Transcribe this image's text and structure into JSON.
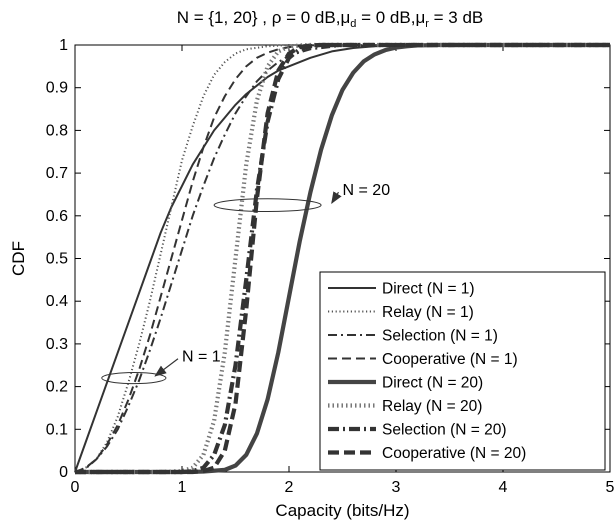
{
  "chart_data": {
    "type": "line",
    "title": {
      "parts": [
        {
          "text": "N = {1, 20} , ρ = 0 dB,μ"
        },
        {
          "text": "d",
          "sub": true
        },
        {
          "text": " = 0 dB,μ"
        },
        {
          "text": "r",
          "sub": true
        },
        {
          "text": " = 3 dB"
        }
      ]
    },
    "xlabel": "Capacity (bits/Hz)",
    "ylabel": "CDF",
    "xlim": [
      0,
      5
    ],
    "ylim": [
      0,
      1
    ],
    "xticks": [
      "0",
      "1",
      "2",
      "3",
      "4",
      "5"
    ],
    "yticks": [
      "0",
      "0.1",
      "0.2",
      "0.3",
      "0.4",
      "0.5",
      "0.6",
      "0.7",
      "0.8",
      "0.9",
      "1"
    ],
    "grid": false,
    "legend_position": "bottom-right",
    "series": [
      {
        "name": "Direct (N = 1)",
        "style": "solid",
        "width": "thin",
        "color": "#333333",
        "x": [
          0,
          0.1,
          0.2,
          0.3,
          0.4,
          0.5,
          0.6,
          0.7,
          0.8,
          0.9,
          1.0,
          1.1,
          1.2,
          1.3,
          1.4,
          1.5,
          1.6,
          1.7,
          1.8,
          1.9,
          2.0,
          2.2,
          2.4,
          2.6,
          2.8,
          3.0,
          3.5,
          4.0,
          5.0
        ],
        "y": [
          0,
          0.07,
          0.14,
          0.21,
          0.28,
          0.35,
          0.42,
          0.49,
          0.56,
          0.62,
          0.67,
          0.72,
          0.76,
          0.8,
          0.83,
          0.86,
          0.885,
          0.905,
          0.925,
          0.94,
          0.95,
          0.97,
          0.985,
          0.993,
          0.997,
          0.999,
          1,
          1,
          1
        ]
      },
      {
        "name": "Relay (N = 1)",
        "style": "dotted",
        "width": "thin",
        "color": "#555555",
        "x": [
          0,
          0.1,
          0.2,
          0.3,
          0.4,
          0.5,
          0.6,
          0.7,
          0.8,
          0.9,
          1.0,
          1.1,
          1.2,
          1.3,
          1.4,
          1.5,
          1.6,
          1.8,
          2.0,
          2.5,
          5.0
        ],
        "y": [
          0,
          0.01,
          0.03,
          0.07,
          0.13,
          0.21,
          0.3,
          0.4,
          0.51,
          0.62,
          0.73,
          0.81,
          0.88,
          0.93,
          0.96,
          0.98,
          0.99,
          0.997,
          1,
          1,
          1
        ]
      },
      {
        "name": "Selection (N = 1)",
        "style": "dashdot",
        "width": "thin",
        "color": "#333333",
        "x": [
          0,
          0.1,
          0.2,
          0.3,
          0.4,
          0.5,
          0.6,
          0.7,
          0.8,
          0.9,
          1.0,
          1.1,
          1.2,
          1.3,
          1.4,
          1.5,
          1.6,
          1.7,
          1.8,
          1.9,
          2.0,
          2.2,
          2.5,
          3.0,
          5.0
        ],
        "y": [
          0,
          0.008,
          0.03,
          0.06,
          0.1,
          0.155,
          0.215,
          0.285,
          0.36,
          0.44,
          0.52,
          0.6,
          0.67,
          0.735,
          0.79,
          0.84,
          0.88,
          0.915,
          0.94,
          0.96,
          0.975,
          0.99,
          0.998,
          1,
          1
        ]
      },
      {
        "name": "Cooperative (N = 1)",
        "style": "dashed",
        "width": "thin",
        "color": "#333333",
        "x": [
          0,
          0.1,
          0.2,
          0.3,
          0.4,
          0.5,
          0.6,
          0.7,
          0.8,
          0.9,
          1.0,
          1.1,
          1.2,
          1.3,
          1.4,
          1.5,
          1.6,
          1.7,
          1.8,
          1.9,
          2.0,
          2.2,
          2.5,
          3.0,
          5.0
        ],
        "y": [
          0,
          0.01,
          0.03,
          0.065,
          0.11,
          0.17,
          0.24,
          0.32,
          0.41,
          0.5,
          0.59,
          0.68,
          0.76,
          0.83,
          0.88,
          0.92,
          0.95,
          0.97,
          0.982,
          0.99,
          0.995,
          0.999,
          1,
          1,
          1
        ]
      },
      {
        "name": "Direct (N = 20)",
        "style": "solid",
        "width": "thick",
        "color": "#444444",
        "x": [
          0,
          0.5,
          1.0,
          1.2,
          1.4,
          1.5,
          1.6,
          1.7,
          1.8,
          1.9,
          2.0,
          2.1,
          2.2,
          2.3,
          2.4,
          2.5,
          2.6,
          2.7,
          2.8,
          2.9,
          3.0,
          3.1,
          3.2,
          3.4,
          3.6,
          4.0,
          5.0
        ],
        "y": [
          0,
          0,
          0,
          0.001,
          0.005,
          0.015,
          0.04,
          0.09,
          0.17,
          0.28,
          0.41,
          0.54,
          0.655,
          0.755,
          0.835,
          0.895,
          0.935,
          0.962,
          0.978,
          0.988,
          0.994,
          0.997,
          0.999,
          1,
          1,
          1,
          1
        ]
      },
      {
        "name": "Relay (N = 20)",
        "style": "dotted",
        "width": "thick",
        "color": "#777777",
        "x": [
          0,
          0.8,
          1.0,
          1.1,
          1.2,
          1.3,
          1.4,
          1.5,
          1.6,
          1.7,
          1.8,
          1.9,
          2.0,
          2.1,
          2.2,
          2.5,
          5.0
        ],
        "y": [
          0,
          0,
          0.002,
          0.01,
          0.04,
          0.12,
          0.28,
          0.5,
          0.72,
          0.87,
          0.95,
          0.985,
          0.996,
          0.999,
          1,
          1,
          1
        ]
      },
      {
        "name": "Selection (N = 20)",
        "style": "dashdot",
        "width": "thick",
        "color": "#333333",
        "x": [
          0,
          1.0,
          1.1,
          1.2,
          1.3,
          1.4,
          1.5,
          1.6,
          1.7,
          1.8,
          1.9,
          2.0,
          2.1,
          2.2,
          2.3,
          2.5,
          5.0
        ],
        "y": [
          0,
          0,
          0.002,
          0.01,
          0.04,
          0.11,
          0.25,
          0.45,
          0.66,
          0.82,
          0.92,
          0.97,
          0.99,
          0.997,
          1,
          1,
          1
        ]
      },
      {
        "name": "Cooperative (N = 20)",
        "style": "dashed",
        "width": "thick",
        "color": "#333333",
        "x": [
          0,
          1.1,
          1.2,
          1.3,
          1.4,
          1.5,
          1.6,
          1.7,
          1.8,
          1.9,
          2.0,
          2.1,
          2.2,
          2.3,
          2.5,
          5.0
        ],
        "y": [
          0,
          0,
          0.002,
          0.01,
          0.05,
          0.16,
          0.38,
          0.64,
          0.84,
          0.94,
          0.98,
          0.995,
          0.999,
          1,
          1,
          1
        ]
      }
    ],
    "annotations": [
      {
        "text": "N = 1",
        "ellipse_center": [
          0.55,
          0.22
        ],
        "ellipse_radii": [
          0.3,
          0.013
        ],
        "text_at": [
          1.0,
          0.27
        ],
        "arrow_to": [
          0.75,
          0.225
        ]
      },
      {
        "text": "N = 20",
        "ellipse_center": [
          1.8,
          0.625
        ],
        "ellipse_radii": [
          0.5,
          0.015
        ],
        "text_at": [
          2.5,
          0.66
        ],
        "arrow_to": [
          2.4,
          0.63
        ]
      }
    ]
  }
}
